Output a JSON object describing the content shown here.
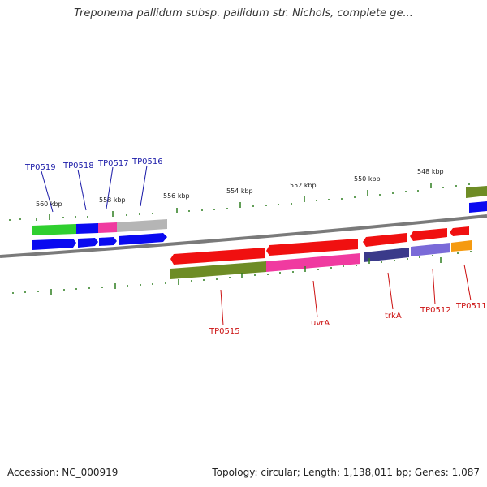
{
  "title": "Treponema pallidum subsp. pallidum str. Nichols, complete ge...",
  "footer": {
    "accession": "Accession: NC_000919",
    "summary": "Topology: circular; Length: 1,138,011 bp; Genes: 1,087"
  },
  "ruler_labels": [
    "560 kbp",
    "558 kbp",
    "556 kbp",
    "554 kbp",
    "552 kbp",
    "550 kbp",
    "548 kbp"
  ],
  "upper_gene_labels": [
    "TP0519",
    "TP0518",
    "TP0517",
    "TP0516"
  ],
  "lower_gene_labels": [
    "TP0515",
    "uvrA",
    "trkA",
    "TP0512",
    "TP0511"
  ],
  "colors": {
    "backbone": "#7a7a7a",
    "tick": "#2e7d1f",
    "upper_label": "#1a1aa8",
    "lower_label": "#cc1111",
    "green": "#2fcf2f",
    "olive": "#6e8c25",
    "blue": "#0a0af0",
    "magenta": "#f03aa0",
    "grey": "#b5b5b5",
    "red": "#f01010",
    "navy": "#3a3a8a",
    "purple": "#7a6ad8",
    "orange": "#f59a10"
  }
}
